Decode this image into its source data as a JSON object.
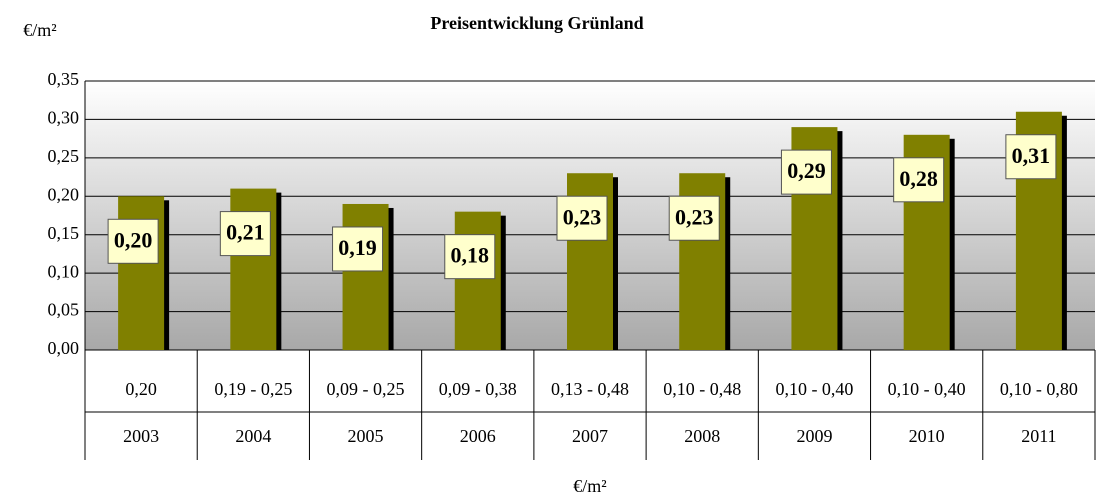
{
  "chart_data": {
    "type": "bar",
    "title": "Preisentwicklung Grünland",
    "y_label": "€/m²",
    "x_label": "€/m²",
    "categories": [
      "2003",
      "2004",
      "2005",
      "2006",
      "2007",
      "2008",
      "2009",
      "2010",
      "2011"
    ],
    "ranges": [
      "0,20",
      "0,19 - 0,25",
      "0,09 - 0,25",
      "0,09 - 0,38",
      "0,13 - 0,48",
      "0,10 - 0,48",
      "0,10 - 0,40",
      "0,10 - 0,40",
      "0,10 - 0,80"
    ],
    "values": [
      0.2,
      0.21,
      0.19,
      0.18,
      0.23,
      0.23,
      0.29,
      0.28,
      0.31
    ],
    "value_labels": [
      "0,20",
      "0,21",
      "0,19",
      "0,18",
      "0,23",
      "0,23",
      "0,29",
      "0,28",
      "0,31"
    ],
    "color": "#808000",
    "ylim": [
      0,
      0.35
    ],
    "yticks": [
      {
        "value": 0,
        "label": "0,00"
      },
      {
        "value": 0.05,
        "label": "0,05"
      },
      {
        "value": 0.1,
        "label": "0,10"
      },
      {
        "value": 0.15,
        "label": "0,15"
      },
      {
        "value": 0.2,
        "label": "0,20"
      },
      {
        "value": 0.25,
        "label": "0,25"
      },
      {
        "value": 0.3,
        "label": "0,30"
      },
      {
        "value": 0.35,
        "label": "0,35"
      }
    ],
    "grid": true
  }
}
